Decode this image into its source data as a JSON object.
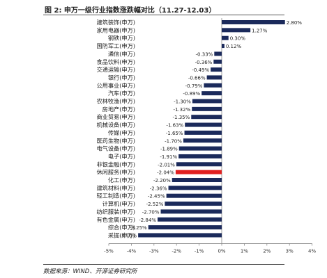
{
  "figure_title": "图 2: 申万一级行业指数涨跌幅对比（11.27-12.03）",
  "source": "数据来源：WIND、开源证券研究所",
  "colors": {
    "bar": "#1b2a5b",
    "highlight": "#e02020",
    "axis": "#888888"
  },
  "chart_data": {
    "type": "bar",
    "orientation": "horizontal",
    "title": "",
    "xlabel": "",
    "ylabel": "",
    "xlim": [
      -5,
      4
    ],
    "xticks": [
      "-5%",
      "-4%",
      "-3%",
      "-2%",
      "-1%",
      "0%",
      "1%",
      "2%",
      "3%",
      "4%"
    ],
    "highlight_category": "休闲服务(申万)",
    "categories": [
      "建筑装饰(申万)",
      "家用电器(申万)",
      "钢铁(申万)",
      "国防军工(申万)",
      "通信(申万)",
      "食品饮料(申万)",
      "交通运输(申万)",
      "银行(申万)",
      "公用事业(申万)",
      "汽车(申万)",
      "农林牧渔(申万)",
      "房地产(申万)",
      "商业贸易(申万)",
      "机械设备(申万)",
      "传媒(申万)",
      "医药生物(申万)",
      "电气设备(申万)",
      "电子(申万)",
      "非银金融(申万)",
      "休闲服务(申万)",
      "化工(申万)",
      "建筑材料(申万)",
      "轻工制造(申万)",
      "计算机(申万)",
      "纺织服装(申万)",
      "有色金属(申万)",
      "综合(申万)",
      "采掘(申万)"
    ],
    "values": [
      2.8,
      1.27,
      0.3,
      0.12,
      -0.33,
      -0.36,
      -0.49,
      -0.66,
      -0.79,
      -0.89,
      -1.3,
      -1.32,
      -1.35,
      -1.63,
      -1.65,
      -1.7,
      -1.89,
      -1.91,
      -2.01,
      -2.04,
      -2.2,
      -2.36,
      -2.45,
      -2.52,
      -2.7,
      -2.84,
      -3.25,
      -3.7
    ],
    "data_labels": [
      "2.80%",
      "1.27%",
      "0.30%",
      "0.12%",
      "-0.33%",
      "-0.36%",
      "-0.49%",
      "-0.66%",
      "-0.79%",
      "-0.89%",
      "-1.30%",
      "-1.32%",
      "-1.35%",
      "-1.63%",
      "-1.65%",
      "-1.70%",
      "-1.89%",
      "-1.91%",
      "-2.01%",
      "-2.04%",
      "-2.20%",
      "-2.36%",
      "-2.45%",
      "-2.52%",
      "-2.70%",
      "-2.84%",
      "-3.25%",
      "-3.70%"
    ]
  }
}
